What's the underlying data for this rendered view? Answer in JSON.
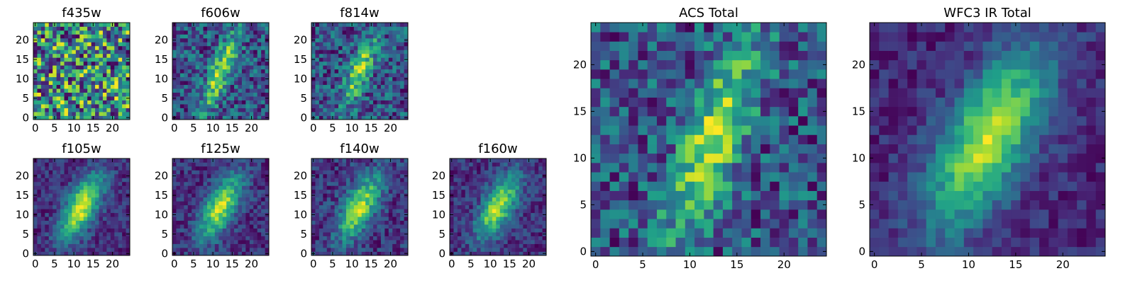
{
  "figure": {
    "colormap": "viridis"
  },
  "chart_data": [
    {
      "type": "heatmap",
      "title": "f435w",
      "grid_size": 25,
      "xlim": [
        0,
        24
      ],
      "ylim": [
        0,
        24
      ],
      "xticks": [
        "0",
        "5",
        "10",
        "15",
        "20"
      ],
      "yticks": [
        "0",
        "5",
        "10",
        "15",
        "20"
      ],
      "structure": "noise",
      "seed": 11,
      "noise": 0.9,
      "base": 0.55
    },
    {
      "type": "heatmap",
      "title": "f606w",
      "grid_size": 25,
      "xlim": [
        0,
        24
      ],
      "ylim": [
        0,
        24
      ],
      "xticks": [
        "0",
        "5",
        "10",
        "15",
        "20"
      ],
      "yticks": [
        "0",
        "5",
        "10",
        "15",
        "20"
      ],
      "structure": "elongated-source",
      "center": [
        12,
        12
      ],
      "angle_deg": 68,
      "sigma_major": 8,
      "sigma_minor": 1.8,
      "amplitude": 0.55,
      "base": 0.32,
      "noise": 0.5,
      "seed": 23
    },
    {
      "type": "heatmap",
      "title": "f814w",
      "grid_size": 25,
      "xlim": [
        0,
        24
      ],
      "ylim": [
        0,
        24
      ],
      "xticks": [
        "0",
        "5",
        "10",
        "15",
        "20"
      ],
      "yticks": [
        "0",
        "5",
        "10",
        "15",
        "20"
      ],
      "structure": "elongated-source",
      "center": [
        12,
        12
      ],
      "angle_deg": 68,
      "sigma_major": 6.5,
      "sigma_minor": 1.8,
      "amplitude": 0.6,
      "base": 0.3,
      "noise": 0.55,
      "seed": 37
    },
    {
      "type": "heatmap",
      "title": "f105w",
      "grid_size": 25,
      "xlim": [
        0,
        24
      ],
      "ylim": [
        0,
        24
      ],
      "xticks": [
        "0",
        "5",
        "10",
        "15",
        "20"
      ],
      "yticks": [
        "0",
        "5",
        "10",
        "15",
        "20"
      ],
      "structure": "elongated-source",
      "center": [
        12,
        12
      ],
      "angle_deg": 62,
      "sigma_major": 6.5,
      "sigma_minor": 2.6,
      "amplitude": 0.75,
      "base": 0.28,
      "noise": 0.25,
      "seed": 41
    },
    {
      "type": "heatmap",
      "title": "f125w",
      "grid_size": 25,
      "xlim": [
        0,
        24
      ],
      "ylim": [
        0,
        24
      ],
      "xticks": [
        "0",
        "5",
        "10",
        "15",
        "20"
      ],
      "yticks": [
        "0",
        "5",
        "10",
        "15",
        "20"
      ],
      "structure": "elongated-source",
      "center": [
        12,
        12
      ],
      "angle_deg": 62,
      "sigma_major": 6.5,
      "sigma_minor": 2.6,
      "amplitude": 0.75,
      "base": 0.28,
      "noise": 0.3,
      "seed": 53
    },
    {
      "type": "heatmap",
      "title": "f140w",
      "grid_size": 25,
      "xlim": [
        0,
        24
      ],
      "ylim": [
        0,
        24
      ],
      "xticks": [
        "0",
        "5",
        "10",
        "15",
        "20"
      ],
      "yticks": [
        "0",
        "5",
        "10",
        "15",
        "20"
      ],
      "structure": "elongated-source",
      "center": [
        12,
        12
      ],
      "angle_deg": 62,
      "sigma_major": 6.5,
      "sigma_minor": 2.6,
      "amplitude": 0.7,
      "base": 0.3,
      "noise": 0.32,
      "seed": 67
    },
    {
      "type": "heatmap",
      "title": "f160w",
      "grid_size": 25,
      "xlim": [
        0,
        24
      ],
      "ylim": [
        0,
        24
      ],
      "xticks": [
        "0",
        "5",
        "10",
        "15",
        "20"
      ],
      "yticks": [
        "0",
        "5",
        "10",
        "15",
        "20"
      ],
      "structure": "elongated-source",
      "center": [
        12,
        12
      ],
      "angle_deg": 62,
      "sigma_major": 6.5,
      "sigma_minor": 2.6,
      "amplitude": 0.72,
      "base": 0.28,
      "noise": 0.28,
      "seed": 79
    },
    {
      "type": "heatmap",
      "title": "ACS Total",
      "grid_size": 25,
      "xlim": [
        0,
        24
      ],
      "ylim": [
        0,
        24
      ],
      "xticks": [
        "0",
        "5",
        "10",
        "15",
        "20"
      ],
      "yticks": [
        "0",
        "5",
        "10",
        "15",
        "20"
      ],
      "structure": "elongated-source",
      "center": [
        12.5,
        12
      ],
      "angle_deg": 70,
      "sigma_major": 8,
      "sigma_minor": 2,
      "amplitude": 0.5,
      "base": 0.42,
      "noise": 0.42,
      "seed": 97
    },
    {
      "type": "heatmap",
      "title": "WFC3 IR Total",
      "grid_size": 25,
      "xlim": [
        0,
        24
      ],
      "ylim": [
        0,
        24
      ],
      "xticks": [
        "0",
        "5",
        "10",
        "15",
        "20"
      ],
      "yticks": [
        "0",
        "5",
        "10",
        "15",
        "20"
      ],
      "structure": "elongated-source",
      "center": [
        12,
        12
      ],
      "angle_deg": 62,
      "sigma_major": 7.5,
      "sigma_minor": 3,
      "amplitude": 0.75,
      "base": 0.25,
      "noise": 0.22,
      "seed": 113
    }
  ]
}
